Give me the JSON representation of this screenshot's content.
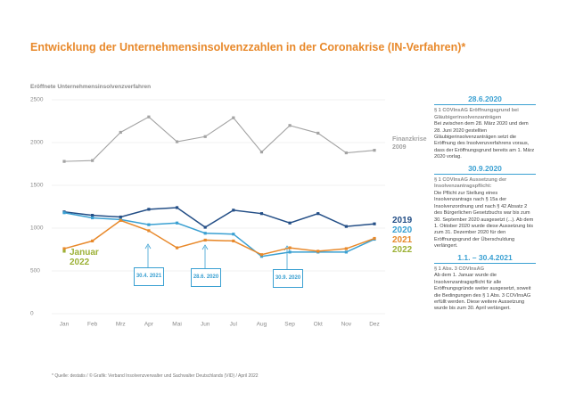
{
  "chart_data": {
    "type": "line",
    "title": "Entwicklung der Unternehmensinsolvenzzahlen in der Coronakrise (IN-Verfahren)*",
    "y_label": "Eröffnete Unternehmensinsolvenzverfahren",
    "categories": [
      "Jan",
      "Feb",
      "Mrz",
      "Apr",
      "Mai",
      "Jun",
      "Jul",
      "Aug",
      "Sep",
      "Okt",
      "Nov",
      "Dez"
    ],
    "ylim": [
      0,
      2500
    ],
    "yticks": [
      0,
      500,
      1000,
      1500,
      2000,
      2500
    ],
    "grid": true,
    "series": [
      {
        "name": "Finanzkrise 2009",
        "color": "#a3a3a3",
        "values": [
          1780,
          1790,
          2120,
          2300,
          2010,
          2070,
          2290,
          1890,
          2200,
          2110,
          1880,
          1910
        ]
      },
      {
        "name": "2019",
        "color": "#234e86",
        "values": [
          1190,
          1150,
          1130,
          1220,
          1240,
          1010,
          1210,
          1170,
          1060,
          1170,
          1020,
          1050
        ]
      },
      {
        "name": "2020",
        "color": "#3aa0d2",
        "values": [
          1180,
          1120,
          1100,
          1040,
          1060,
          940,
          930,
          670,
          720,
          720,
          720,
          870
        ]
      },
      {
        "name": "2021",
        "color": "#e8892b",
        "values": [
          760,
          850,
          1090,
          970,
          770,
          860,
          850,
          690,
          770,
          730,
          760,
          880
        ]
      },
      {
        "name": "2022",
        "color": "#9cb136",
        "values": [
          730,
          null,
          null,
          null,
          null,
          null,
          null,
          null,
          null,
          null,
          null,
          null
        ]
      }
    ],
    "annotations": [
      "Januar 2022",
      "30.4. 2021",
      "28.6. 2020",
      "30.9. 2020"
    ],
    "notes": [
      {
        "date": "28.6.2020",
        "subtitle": "§ 1 COVInsAG Eröffnungsgrund bei Gläubigerinsolvenzanträgen",
        "text": "Bei zwischen dem 28. März 2020 und dem 28. Juni 2020 gestellten Gläubigerinsolvenzanträgen setzt die Eröffnung des Insolvenzverfahrens voraus, dass der Eröffnungsgrund bereits am 1. März 2020 vorlag."
      },
      {
        "date": "30.9.2020",
        "subtitle": "§ 1 COVInsAG Aussetzung der Insolvenzantragspflicht:",
        "text": "Die Pflicht zur Stellung eines Insolvenzantrags nach § 15a der Insolvenzordnung und nach § 42 Absatz 2 des Bürgerlichen Gesetzbuchs war bis zum 30. September 2020 ausgesetzt (...). Ab dem 1. Oktober 2020 wurde diese Aussetzung bis zum 31. Dezember 2020 für den Eröffnungsgrund der Überschuldung verlängert."
      },
      {
        "date": "1.1. – 30.4.2021",
        "subtitle": "§ 1 Abs. 3 COVInsAG",
        "text": "Ab dem 1. Januar wurde die Insolvenzantragspflicht für alle Eröffnungsgründe weiter ausgesetzt, soweit die Bedingungen des § 1 Abs. 3 COVInsAG erfüllt werden. Diese weitere Aussetzung wurde bis zum 30. April verlängert."
      }
    ],
    "footnote": "* Quelle: destatis / © Grafik: Verband Insolvenzverwalter und Sachwalter Deutschlands (VID) / April 2022"
  }
}
